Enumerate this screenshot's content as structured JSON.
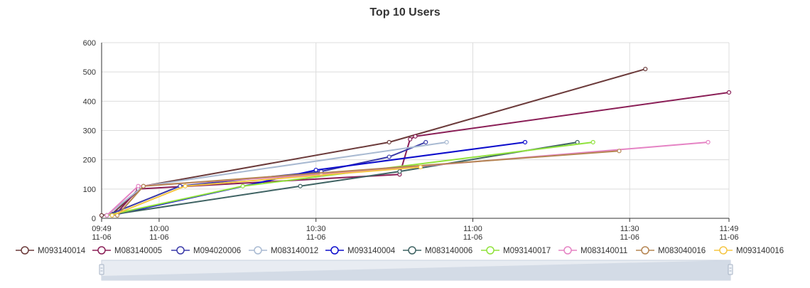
{
  "chart_data": {
    "type": "line",
    "title": "Top 10 Users",
    "xlabel": "",
    "ylabel": "",
    "ylim": [
      0,
      600
    ],
    "yticks": [
      "0",
      "100",
      "200",
      "300",
      "400",
      "500",
      "600"
    ],
    "xrange": [
      "09:49",
      "11:49"
    ],
    "xticks": [
      {
        "t": "09:49",
        "line1": "09:49",
        "line2": "11-06"
      },
      {
        "t": "10:00",
        "line1": "10:00",
        "line2": "11-06"
      },
      {
        "t": "10:30",
        "line1": "10:30",
        "line2": "11-06"
      },
      {
        "t": "11:00",
        "line1": "11:00",
        "line2": "11-06"
      },
      {
        "t": "11:30",
        "line1": "11:30",
        "line2": "11-06"
      },
      {
        "t": "11:49",
        "line1": "11:49",
        "line2": "11-06"
      }
    ],
    "grid": true,
    "legend_position": "bottom",
    "series": [
      {
        "name": "M093140014",
        "color": "#6b3a3a",
        "points": [
          [
            "09:49",
            10
          ],
          [
            "09:51",
            15
          ],
          [
            "09:57",
            110
          ],
          [
            "10:44",
            260
          ],
          [
            "11:33",
            510
          ]
        ]
      },
      {
        "name": "M083140005",
        "color": "#8a1e56",
        "points": [
          [
            "09:50",
            10
          ],
          [
            "09:52",
            20
          ],
          [
            "09:56",
            100
          ],
          [
            "10:46",
            150
          ],
          [
            "10:48",
            270
          ],
          [
            "10:49",
            280
          ],
          [
            "11:49",
            430
          ]
        ]
      },
      {
        "name": "M094020006",
        "color": "#3a3aa8",
        "points": [
          [
            "09:50",
            10
          ],
          [
            "10:04",
            110
          ],
          [
            "10:31",
            160
          ],
          [
            "10:44",
            210
          ],
          [
            "10:51",
            260
          ]
        ]
      },
      {
        "name": "M083140012",
        "color": "#a9bad2",
        "points": [
          [
            "09:50",
            10
          ],
          [
            "09:57",
            110
          ],
          [
            "10:55",
            260
          ]
        ]
      },
      {
        "name": "M093140004",
        "color": "#0d0dcc",
        "points": [
          [
            "09:51",
            10
          ],
          [
            "10:30",
            165
          ],
          [
            "11:10",
            260
          ]
        ]
      },
      {
        "name": "M083140006",
        "color": "#3f6363",
        "points": [
          [
            "09:50",
            10
          ],
          [
            "10:27",
            110
          ],
          [
            "10:46",
            160
          ],
          [
            "11:20",
            260
          ]
        ]
      },
      {
        "name": "M093140017",
        "color": "#90e23c",
        "points": [
          [
            "09:50",
            10
          ],
          [
            "10:16",
            110
          ],
          [
            "11:23",
            260
          ]
        ]
      },
      {
        "name": "M083140011",
        "color": "#e583c4",
        "points": [
          [
            "09:50",
            10
          ],
          [
            "09:56",
            110
          ],
          [
            "10:31",
            150
          ],
          [
            "11:45",
            260
          ]
        ]
      },
      {
        "name": "M083040016",
        "color": "#b58552",
        "points": [
          [
            "09:52",
            10
          ],
          [
            "09:57",
            110
          ],
          [
            "11:28",
            230
          ]
        ]
      },
      {
        "name": "M093140016",
        "color": "#f5c542",
        "points": [
          [
            "09:51",
            10
          ],
          [
            "10:05",
            110
          ],
          [
            "10:50",
            175
          ]
        ]
      }
    ]
  }
}
